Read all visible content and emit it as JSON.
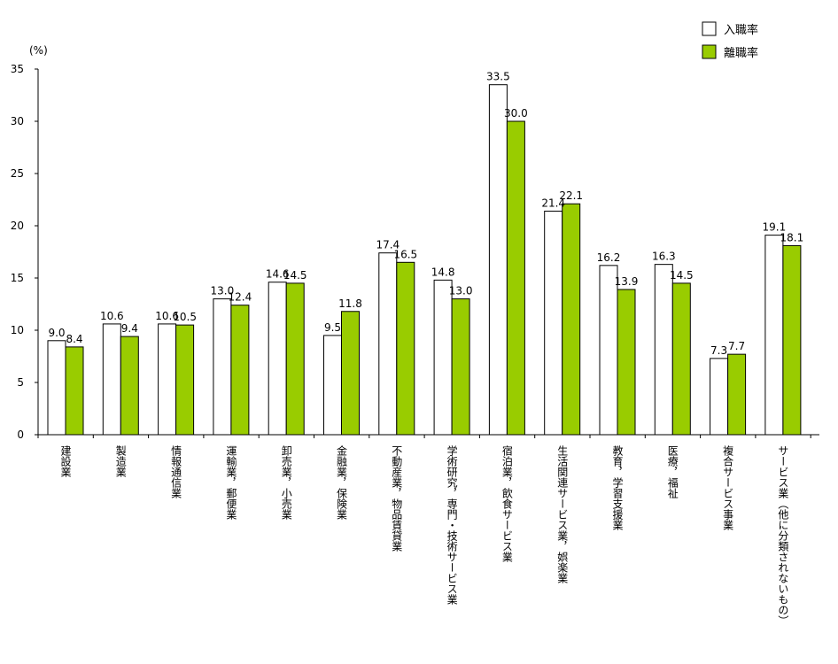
{
  "chart_data": {
    "type": "bar",
    "unit": "(%)",
    "ylim": [
      0,
      35
    ],
    "yticks": [
      0,
      5,
      10,
      15,
      20,
      25,
      30,
      35
    ],
    "grid": false,
    "legend_position": "top-right",
    "categories": [
      "建設業",
      "製造業",
      "情報通信業",
      "運輸業，郵便業",
      "卸売業，小売業",
      "金融業，保険業",
      "不動産業，物品賃貸業",
      "学術研究，専門・技術サービス業",
      "宿泊業，飲食サービス業",
      "生活関連サービス業，娯楽業",
      "教育，学習支援業",
      "医療，福祉",
      "複合サービス事業",
      "サービス業（他に分類されないもの）"
    ],
    "series": [
      {
        "name": "入職率",
        "color": "#ffffff",
        "values": [
          9.0,
          10.6,
          10.6,
          13.0,
          14.6,
          9.5,
          17.4,
          14.8,
          33.5,
          21.4,
          16.2,
          16.3,
          7.3,
          19.1
        ]
      },
      {
        "name": "離職率",
        "color": "#99cc00",
        "values": [
          8.4,
          9.4,
          10.5,
          12.4,
          14.5,
          11.8,
          16.5,
          13.0,
          30.0,
          22.1,
          13.9,
          14.5,
          7.7,
          18.1
        ]
      }
    ]
  }
}
